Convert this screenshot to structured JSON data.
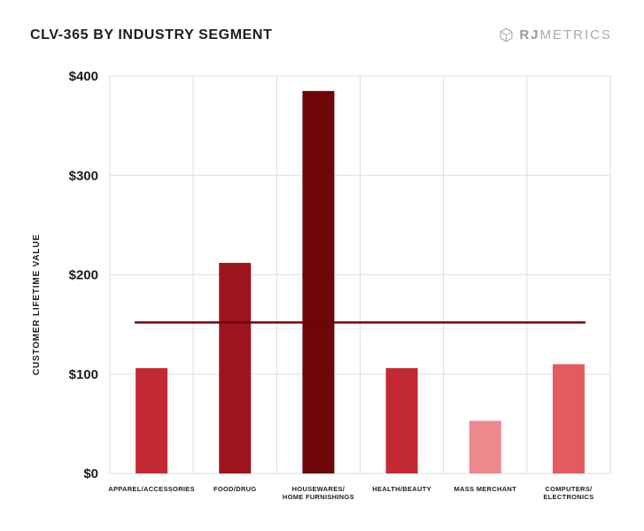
{
  "title": "CLV-365 BY INDUSTRY SEGMENT",
  "brand": {
    "prefix": "RJ",
    "suffix": "METRICS",
    "icon": "rj-metrics-hexagon-logo-icon"
  },
  "chart_data": {
    "type": "bar",
    "title": "CLV-365 BY INDUSTRY SEGMENT",
    "xlabel": "",
    "ylabel": "CUSTOMER LIFETIME VALUE",
    "ylim": [
      0,
      400
    ],
    "yticks": [
      0,
      100,
      200,
      300,
      400
    ],
    "ytick_labels": [
      "$0",
      "$100",
      "$200",
      "$300",
      "$400"
    ],
    "grid": true,
    "categories": [
      [
        "APPAREL/ACCESSORIES"
      ],
      [
        "FOOD/DRUG"
      ],
      [
        "HOUSEWARES/",
        "HOME FURNISHINGS"
      ],
      [
        "HEALTH/BEAUTY"
      ],
      [
        "MASS MERCHANT"
      ],
      [
        "COMPUTERS/",
        "ELECTRONICS"
      ]
    ],
    "values": [
      106,
      212,
      385,
      106,
      53,
      110
    ],
    "bar_colors": [
      "#c42a33",
      "#9c151c",
      "#6e0509",
      "#c42a33",
      "#ee8a8d",
      "#e35a5f"
    ],
    "reference_line": {
      "value": 152,
      "color": "#6e0509"
    }
  }
}
